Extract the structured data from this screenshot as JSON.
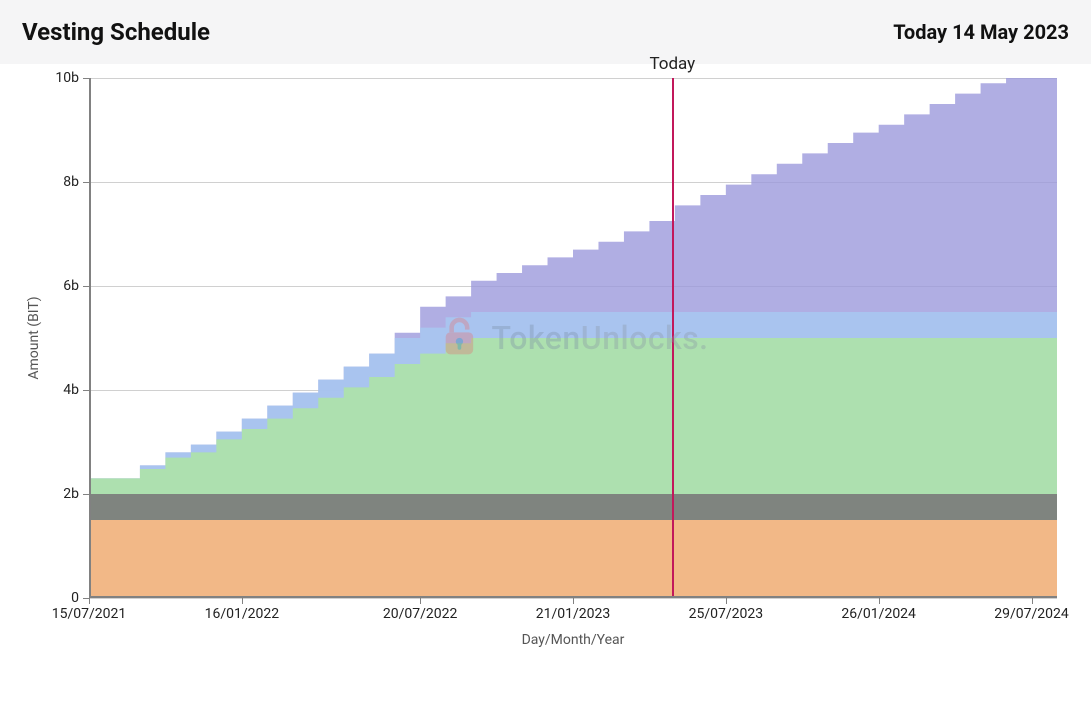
{
  "header": {
    "title": "Vesting Schedule",
    "date_label": "Today 14 May 2023"
  },
  "chart": {
    "type": "stacked-area-step",
    "background_color": "#ffffff",
    "grid_color": "#d0d0d0",
    "axis_color": "#818181",
    "x": {
      "title": "Day/Month/Year",
      "domain_min": 0,
      "domain_max": 38,
      "ticks": [
        {
          "pos": 0,
          "label": "15/07/2021"
        },
        {
          "pos": 6,
          "label": "16/01/2022"
        },
        {
          "pos": 13,
          "label": "20/07/2022"
        },
        {
          "pos": 19,
          "label": "21/01/2023"
        },
        {
          "pos": 25,
          "label": "25/07/2023"
        },
        {
          "pos": 31,
          "label": "26/01/2024"
        },
        {
          "pos": 37,
          "label": "29/07/2024"
        }
      ]
    },
    "y": {
      "title": "Amount (BIT)",
      "domain_min": 0,
      "domain_max": 10,
      "ticks": [
        {
          "pos": 0,
          "label": "0"
        },
        {
          "pos": 2,
          "label": "2b"
        },
        {
          "pos": 4,
          "label": "4b"
        },
        {
          "pos": 6,
          "label": "6b"
        },
        {
          "pos": 8,
          "label": "8b"
        },
        {
          "pos": 10,
          "label": "10b"
        }
      ]
    },
    "today": {
      "label": "Today",
      "x": 22.9,
      "line_color": "#c2185b",
      "line_width": 2
    },
    "watermark": {
      "text_token": "Token",
      "text_unlocks": "Unlocks.",
      "color_token": "#7a8fa6",
      "color_unlocks": "#8a98a6",
      "lock_outer": "#e57373",
      "lock_inner": "#ffffff",
      "lock_accent": "#2f6f9f"
    },
    "series": [
      {
        "name": "orange",
        "color": "#f2b887",
        "opacity": 1.0,
        "steps": [
          {
            "x": 0,
            "y": 1.5
          },
          {
            "x": 38,
            "y": 1.5
          }
        ]
      },
      {
        "name": "grey",
        "color": "#7a7a7a",
        "opacity": 0.9,
        "steps": [
          {
            "x": 0,
            "y": 2.0
          },
          {
            "x": 38,
            "y": 2.0
          }
        ]
      },
      {
        "name": "green",
        "color": "#aee5a3",
        "opacity": 0.85,
        "steps": [
          {
            "x": 0,
            "y": 2.3
          },
          {
            "x": 2,
            "y": 2.3
          },
          {
            "x": 2,
            "y": 2.48
          },
          {
            "x": 3,
            "y": 2.48
          },
          {
            "x": 3,
            "y": 2.7
          },
          {
            "x": 4,
            "y": 2.7
          },
          {
            "x": 4,
            "y": 2.8
          },
          {
            "x": 5,
            "y": 2.8
          },
          {
            "x": 5,
            "y": 3.05
          },
          {
            "x": 6,
            "y": 3.05
          },
          {
            "x": 6,
            "y": 3.25
          },
          {
            "x": 7,
            "y": 3.25
          },
          {
            "x": 7,
            "y": 3.45
          },
          {
            "x": 8,
            "y": 3.45
          },
          {
            "x": 8,
            "y": 3.65
          },
          {
            "x": 9,
            "y": 3.65
          },
          {
            "x": 9,
            "y": 3.85
          },
          {
            "x": 10,
            "y": 3.85
          },
          {
            "x": 10,
            "y": 4.05
          },
          {
            "x": 11,
            "y": 4.05
          },
          {
            "x": 11,
            "y": 4.25
          },
          {
            "x": 12,
            "y": 4.25
          },
          {
            "x": 12,
            "y": 4.5
          },
          {
            "x": 13,
            "y": 4.5
          },
          {
            "x": 13,
            "y": 4.7
          },
          {
            "x": 14,
            "y": 4.7
          },
          {
            "x": 14,
            "y": 4.9
          },
          {
            "x": 15,
            "y": 4.9
          },
          {
            "x": 15,
            "y": 5.0
          },
          {
            "x": 38,
            "y": 5.0
          }
        ]
      },
      {
        "name": "lightblue",
        "color": "#a9c7ef",
        "opacity": 0.9,
        "steps": [
          {
            "x": 0,
            "y": 2.3
          },
          {
            "x": 2,
            "y": 2.3
          },
          {
            "x": 2,
            "y": 2.55
          },
          {
            "x": 3,
            "y": 2.55
          },
          {
            "x": 3,
            "y": 2.8
          },
          {
            "x": 4,
            "y": 2.8
          },
          {
            "x": 4,
            "y": 2.95
          },
          {
            "x": 5,
            "y": 2.95
          },
          {
            "x": 5,
            "y": 3.2
          },
          {
            "x": 6,
            "y": 3.2
          },
          {
            "x": 6,
            "y": 3.45
          },
          {
            "x": 7,
            "y": 3.45
          },
          {
            "x": 7,
            "y": 3.7
          },
          {
            "x": 8,
            "y": 3.7
          },
          {
            "x": 8,
            "y": 3.95
          },
          {
            "x": 9,
            "y": 3.95
          },
          {
            "x": 9,
            "y": 4.2
          },
          {
            "x": 10,
            "y": 4.2
          },
          {
            "x": 10,
            "y": 4.45
          },
          {
            "x": 11,
            "y": 4.45
          },
          {
            "x": 11,
            "y": 4.7
          },
          {
            "x": 12,
            "y": 4.7
          },
          {
            "x": 12,
            "y": 5.0
          },
          {
            "x": 13,
            "y": 5.0
          },
          {
            "x": 13,
            "y": 5.2
          },
          {
            "x": 14,
            "y": 5.2
          },
          {
            "x": 14,
            "y": 5.4
          },
          {
            "x": 15,
            "y": 5.4
          },
          {
            "x": 15,
            "y": 5.5
          },
          {
            "x": 38,
            "y": 5.5
          }
        ]
      },
      {
        "name": "purple",
        "color": "#9a97db",
        "opacity": 0.78,
        "steps": [
          {
            "x": 0,
            "y": 2.3
          },
          {
            "x": 2,
            "y": 2.3
          },
          {
            "x": 2,
            "y": 2.55
          },
          {
            "x": 3,
            "y": 2.55
          },
          {
            "x": 3,
            "y": 2.8
          },
          {
            "x": 4,
            "y": 2.8
          },
          {
            "x": 4,
            "y": 2.95
          },
          {
            "x": 5,
            "y": 2.95
          },
          {
            "x": 5,
            "y": 3.2
          },
          {
            "x": 6,
            "y": 3.2
          },
          {
            "x": 6,
            "y": 3.45
          },
          {
            "x": 7,
            "y": 3.45
          },
          {
            "x": 7,
            "y": 3.7
          },
          {
            "x": 8,
            "y": 3.7
          },
          {
            "x": 8,
            "y": 3.95
          },
          {
            "x": 9,
            "y": 3.95
          },
          {
            "x": 9,
            "y": 4.2
          },
          {
            "x": 10,
            "y": 4.2
          },
          {
            "x": 10,
            "y": 4.45
          },
          {
            "x": 11,
            "y": 4.45
          },
          {
            "x": 11,
            "y": 4.7
          },
          {
            "x": 12,
            "y": 4.7
          },
          {
            "x": 12,
            "y": 5.1
          },
          {
            "x": 13,
            "y": 5.1
          },
          {
            "x": 13,
            "y": 5.6
          },
          {
            "x": 14,
            "y": 5.6
          },
          {
            "x": 14,
            "y": 5.8
          },
          {
            "x": 15,
            "y": 5.8
          },
          {
            "x": 15,
            "y": 6.1
          },
          {
            "x": 16,
            "y": 6.1
          },
          {
            "x": 16,
            "y": 6.25
          },
          {
            "x": 17,
            "y": 6.25
          },
          {
            "x": 17,
            "y": 6.4
          },
          {
            "x": 18,
            "y": 6.4
          },
          {
            "x": 18,
            "y": 6.55
          },
          {
            "x": 19,
            "y": 6.55
          },
          {
            "x": 19,
            "y": 6.7
          },
          {
            "x": 20,
            "y": 6.7
          },
          {
            "x": 20,
            "y": 6.85
          },
          {
            "x": 21,
            "y": 6.85
          },
          {
            "x": 21,
            "y": 7.05
          },
          {
            "x": 22,
            "y": 7.05
          },
          {
            "x": 22,
            "y": 7.25
          },
          {
            "x": 23,
            "y": 7.25
          },
          {
            "x": 23,
            "y": 7.55
          },
          {
            "x": 24,
            "y": 7.55
          },
          {
            "x": 24,
            "y": 7.75
          },
          {
            "x": 25,
            "y": 7.75
          },
          {
            "x": 25,
            "y": 7.95
          },
          {
            "x": 26,
            "y": 7.95
          },
          {
            "x": 26,
            "y": 8.15
          },
          {
            "x": 27,
            "y": 8.15
          },
          {
            "x": 27,
            "y": 8.35
          },
          {
            "x": 28,
            "y": 8.35
          },
          {
            "x": 28,
            "y": 8.55
          },
          {
            "x": 29,
            "y": 8.55
          },
          {
            "x": 29,
            "y": 8.75
          },
          {
            "x": 30,
            "y": 8.75
          },
          {
            "x": 30,
            "y": 8.95
          },
          {
            "x": 31,
            "y": 8.95
          },
          {
            "x": 31,
            "y": 9.1
          },
          {
            "x": 32,
            "y": 9.1
          },
          {
            "x": 32,
            "y": 9.3
          },
          {
            "x": 33,
            "y": 9.3
          },
          {
            "x": 33,
            "y": 9.5
          },
          {
            "x": 34,
            "y": 9.5
          },
          {
            "x": 34,
            "y": 9.7
          },
          {
            "x": 35,
            "y": 9.7
          },
          {
            "x": 35,
            "y": 9.9
          },
          {
            "x": 36,
            "y": 9.9
          },
          {
            "x": 36,
            "y": 10.0
          },
          {
            "x": 38,
            "y": 10.0
          }
        ]
      }
    ]
  }
}
